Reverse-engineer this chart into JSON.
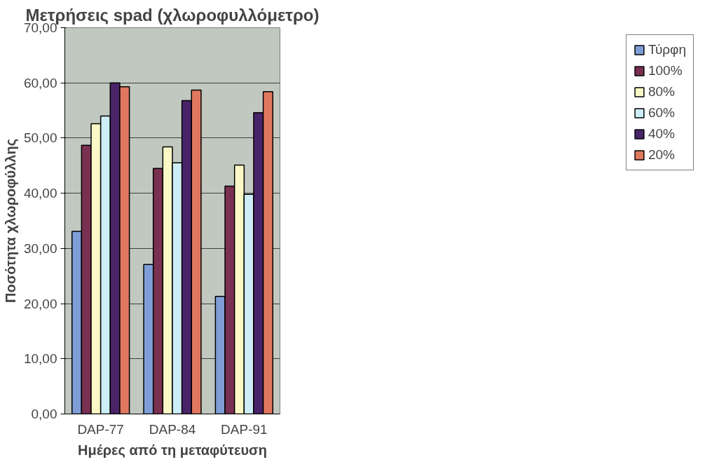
{
  "chart_data": {
    "type": "bar",
    "title": "Μετρήσεις spad (χλωροφυλλόμετρο)",
    "xlabel": "Ημέρες από τη μεταφύτευση",
    "ylabel": "Ποσότητα χλωροφύλλης",
    "categories": [
      "DAP-77",
      "DAP-84",
      "DAP-91"
    ],
    "series": [
      {
        "name": "Τύρφη",
        "color": "#7f9ed8",
        "values": [
          33.1,
          27.1,
          21.3
        ]
      },
      {
        "name": "100%",
        "color": "#7a3050",
        "values": [
          48.7,
          44.5,
          41.3
        ]
      },
      {
        "name": "80%",
        "color": "#fbf8c8",
        "values": [
          52.6,
          48.4,
          45.1
        ]
      },
      {
        "name": "60%",
        "color": "#cdeef6",
        "values": [
          54.0,
          45.5,
          39.8
        ]
      },
      {
        "name": "40%",
        "color": "#4a2468",
        "values": [
          60.0,
          56.8,
          54.6
        ]
      },
      {
        "name": "20%",
        "color": "#e07860",
        "values": [
          59.3,
          58.7,
          58.4
        ]
      }
    ],
    "ylim": [
      0,
      70
    ],
    "yticks": [
      {
        "value": 0,
        "label": "0,00"
      },
      {
        "value": 10,
        "label": "10,00"
      },
      {
        "value": 20,
        "label": "20,00"
      },
      {
        "value": 30,
        "label": "30,00"
      },
      {
        "value": 40,
        "label": "40,00"
      },
      {
        "value": 50,
        "label": "50,00"
      },
      {
        "value": 60,
        "label": "60,00"
      },
      {
        "value": 70,
        "label": "70,00"
      }
    ],
    "grid": "y",
    "legend": "right"
  }
}
